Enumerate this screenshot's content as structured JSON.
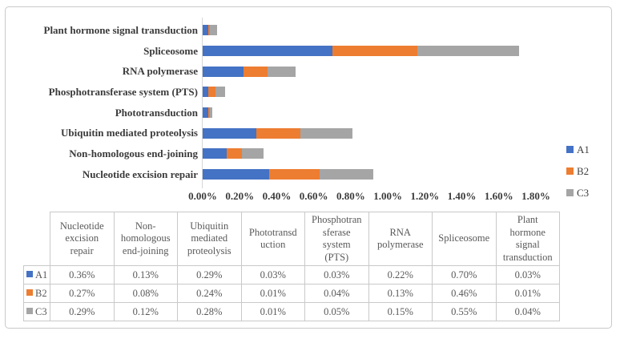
{
  "chart_data": {
    "type": "bar",
    "orientation": "horizontal",
    "stacked": true,
    "title": "",
    "categories": [
      "Plant hormone signal transduction",
      "Spliceosome",
      "RNA polymerase",
      "Phosphotransferase system (PTS)",
      "Phototransduction",
      "Ubiquitin mediated proteolysis",
      "Non-homologous end-joining",
      "Nucleotide excision repair"
    ],
    "series": [
      {
        "name": "A1",
        "color": "#4472C4",
        "values_pct": [
          0.03,
          0.7,
          0.22,
          0.03,
          0.03,
          0.29,
          0.13,
          0.36
        ]
      },
      {
        "name": "B2",
        "color": "#ED7D31",
        "values_pct": [
          0.01,
          0.46,
          0.13,
          0.04,
          0.01,
          0.24,
          0.08,
          0.27
        ]
      },
      {
        "name": "C3",
        "color": "#A5A5A5",
        "values_pct": [
          0.04,
          0.55,
          0.15,
          0.05,
          0.01,
          0.28,
          0.12,
          0.29
        ]
      }
    ],
    "x_axis": {
      "min": 0,
      "max": 1.8,
      "unit": "%",
      "tick_labels": [
        "0.00%",
        "0.20%",
        "0.40%",
        "0.60%",
        "0.80%",
        "1.00%",
        "1.20%",
        "1.40%",
        "1.60%",
        "1.80%"
      ],
      "grid": false
    },
    "legend": {
      "position": "right",
      "entries": [
        "A1",
        "B2",
        "C3"
      ]
    }
  },
  "table": {
    "corner_label": "",
    "columns": [
      "Nucleotide\nexcision\nrepair",
      "Non-\nhomologous\nend-joining",
      "Ubiquitin\nmediated\nproteolysis",
      "Phototransd\nuction",
      "Phosphotran\nsferase\nsystem\n(PTS)",
      "RNA\npolymerase",
      "Spliceosome",
      "Plant\nhormone\nsignal\ntransduction"
    ],
    "rows": [
      {
        "key": "A1",
        "color": "#4472C4",
        "values": [
          "0.36%",
          "0.13%",
          "0.29%",
          "0.03%",
          "0.03%",
          "0.22%",
          "0.70%",
          "0.03%"
        ]
      },
      {
        "key": "B2",
        "color": "#ED7D31",
        "values": [
          "0.27%",
          "0.08%",
          "0.24%",
          "0.01%",
          "0.04%",
          "0.13%",
          "0.46%",
          "0.01%"
        ]
      },
      {
        "key": "C3",
        "color": "#A5A5A5",
        "values": [
          "0.29%",
          "0.12%",
          "0.28%",
          "0.01%",
          "0.05%",
          "0.15%",
          "0.55%",
          "0.04%"
        ]
      }
    ]
  }
}
